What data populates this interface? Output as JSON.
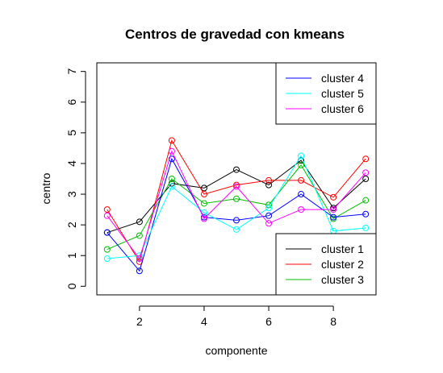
{
  "chart_data": {
    "type": "line",
    "title": "Centros de gravedad con kmeans",
    "xlabel": "componente",
    "ylabel": "centro",
    "xlim": [
      0.68,
      9.32
    ],
    "ylim": [
      -0.28,
      7.28
    ],
    "xticks": [
      2,
      4,
      6,
      8
    ],
    "yticks": [
      0,
      1,
      2,
      3,
      4,
      5,
      6,
      7
    ],
    "x": [
      1,
      2,
      3,
      4,
      5,
      6,
      7,
      8,
      9
    ],
    "grid": false,
    "markers": "open-circle",
    "legends": [
      {
        "position": "top-right",
        "series": [
          3,
          4,
          5
        ]
      },
      {
        "position": "bottom-right",
        "series": [
          0,
          1,
          2
        ]
      }
    ],
    "series": [
      {
        "name": "cluster 1",
        "color": "#000000",
        "values": [
          1.75,
          2.1,
          3.35,
          3.2,
          3.8,
          3.3,
          4.1,
          2.55,
          3.5
        ]
      },
      {
        "name": "cluster 2",
        "color": "#ff0000",
        "values": [
          2.5,
          0.8,
          4.75,
          3.0,
          3.3,
          3.45,
          3.45,
          2.9,
          4.15
        ]
      },
      {
        "name": "cluster 3",
        "color": "#00bf00",
        "values": [
          1.2,
          1.65,
          3.5,
          2.7,
          2.85,
          2.65,
          3.95,
          2.2,
          2.8
        ]
      },
      {
        "name": "cluster 4",
        "color": "#0000ff",
        "values": [
          1.75,
          0.5,
          4.15,
          2.25,
          2.15,
          2.3,
          3.0,
          2.25,
          2.35
        ]
      },
      {
        "name": "cluster 5",
        "color": "#00ffff",
        "values": [
          0.9,
          1.0,
          3.25,
          2.4,
          1.85,
          2.55,
          4.25,
          1.8,
          1.9
        ]
      },
      {
        "name": "cluster 6",
        "color": "#ff00ff",
        "values": [
          2.3,
          0.9,
          4.4,
          2.2,
          3.25,
          2.05,
          2.5,
          2.5,
          3.7
        ]
      }
    ]
  }
}
